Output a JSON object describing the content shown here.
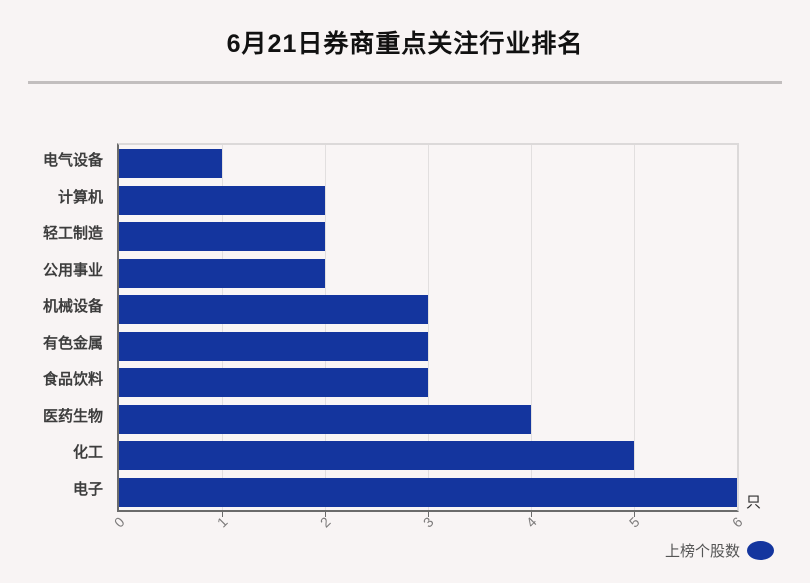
{
  "title": "6月21日券商重点关注行业排名",
  "unit_label": "只",
  "legend": {
    "label": "上榜个股数"
  },
  "colors": {
    "bar": "#14359E",
    "background": "#F8F4F4",
    "axis_line": "#6B6B6B",
    "frame_line": "#DCD9D9",
    "gridline": "#E2DFDF",
    "tick_text": "#7D7B7B",
    "category_text": "#3D3D3D",
    "title_text": "#111111",
    "legend_text": "#555555",
    "divider": "#C2BEBE"
  },
  "chart_data": {
    "type": "bar",
    "orientation": "horizontal",
    "title": "6月21日券商重点关注行业排名",
    "series_name": "上榜个股数",
    "categories": [
      "电气设备",
      "计算机",
      "轻工制造",
      "公用事业",
      "机械设备",
      "有色金属",
      "食品饮料",
      "医药生物",
      "化工",
      "电子"
    ],
    "values": [
      1,
      2,
      2,
      2,
      3,
      3,
      3,
      4,
      5,
      6
    ],
    "xlabel": "只",
    "ylabel": "",
    "xlim": [
      0,
      6
    ],
    "xticks": [
      0,
      1,
      2,
      3,
      4,
      5,
      6
    ],
    "grid": true,
    "legend_position": "bottom-right"
  }
}
